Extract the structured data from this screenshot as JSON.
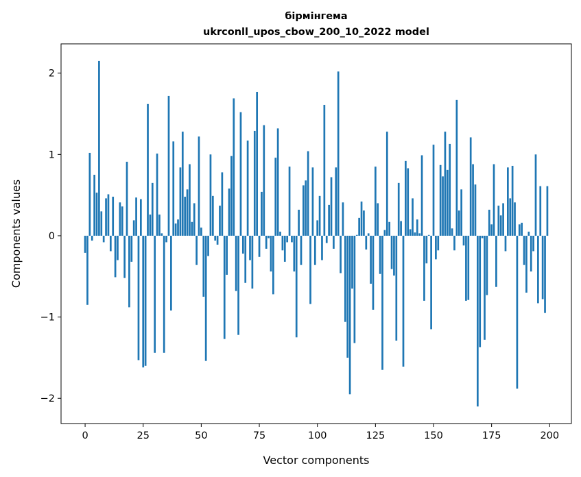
{
  "chart_data": {
    "type": "bar",
    "title": [
      "бірмінгема",
      "ukrconll_upos_cbow_200_10_2022 model"
    ],
    "xlabel": "Vector components",
    "ylabel": "Components values",
    "xlim": [
      -10.36,
      209.36
    ],
    "ylim": [
      -2.31,
      2.36
    ],
    "bar_width": 0.8,
    "color": "#1f77b4",
    "xticks": [
      0,
      25,
      50,
      75,
      100,
      125,
      150,
      175,
      200
    ],
    "xtick_labels": [
      "0",
      "25",
      "50",
      "75",
      "100",
      "125",
      "150",
      "175",
      "200"
    ],
    "yticks": [
      -2,
      -1,
      0,
      1,
      2
    ],
    "ytick_labels": [
      "−2",
      "−1",
      "0",
      "1",
      "2"
    ],
    "values": [
      -0.21,
      -0.85,
      1.02,
      -0.06,
      0.75,
      0.53,
      2.15,
      0.3,
      -0.08,
      0.46,
      0.51,
      -0.19,
      0.48,
      -0.51,
      -0.3,
      0.41,
      0.36,
      -0.52,
      0.91,
      -0.88,
      -0.32,
      0.19,
      0.47,
      -1.53,
      0.45,
      -1.62,
      -1.6,
      1.62,
      0.26,
      0.65,
      -1.44,
      1.01,
      0.26,
      0.03,
      -1.44,
      -0.08,
      1.72,
      -0.92,
      1.16,
      0.15,
      0.2,
      0.84,
      1.28,
      0.48,
      0.57,
      0.88,
      0.17,
      0.4,
      -0.36,
      1.22,
      0.1,
      -0.75,
      -1.54,
      -0.25,
      1.0,
      0.49,
      -0.06,
      -0.11,
      0.37,
      0.78,
      -1.27,
      -0.48,
      0.58,
      0.98,
      1.69,
      -0.68,
      -1.22,
      1.52,
      -0.22,
      -0.58,
      1.17,
      -0.3,
      -0.65,
      1.29,
      1.77,
      -0.26,
      0.54,
      1.36,
      -0.16,
      -0.03,
      -0.44,
      -0.72,
      0.96,
      1.32,
      0.05,
      -0.18,
      -0.32,
      -0.08,
      0.85,
      -0.08,
      -0.44,
      -1.25,
      0.32,
      -0.36,
      0.62,
      0.68,
      1.04,
      -0.84,
      0.84,
      -0.36,
      0.19,
      0.49,
      -0.3,
      1.61,
      -0.09,
      0.38,
      0.72,
      -0.16,
      0.84,
      2.02,
      -0.46,
      0.41,
      -1.06,
      -1.5,
      -1.95,
      -0.65,
      -1.32,
      0.01,
      0.22,
      0.42,
      0.31,
      -0.17,
      0.03,
      -0.59,
      -0.91,
      0.85,
      0.4,
      -0.47,
      -1.65,
      0.07,
      1.28,
      0.17,
      -0.41,
      -0.49,
      -1.29,
      0.65,
      0.18,
      -1.61,
      0.92,
      0.83,
      0.08,
      0.46,
      0.04,
      0.2,
      0.03,
      0.99,
      -0.8,
      -0.34,
      0.01,
      -1.15,
      1.12,
      -0.29,
      -0.18,
      0.87,
      0.73,
      1.28,
      0.81,
      1.13,
      0.09,
      -0.18,
      1.67,
      0.31,
      0.57,
      -0.12,
      -0.8,
      -0.79,
      1.21,
      0.88,
      0.63,
      -2.1,
      -1.37,
      -0.03,
      -1.28,
      -0.73,
      0.32,
      0.14,
      0.88,
      -0.63,
      0.37,
      0.25,
      0.4,
      -0.19,
      0.84,
      0.46,
      0.86,
      0.41,
      -1.88,
      0.14,
      0.16,
      -0.36,
      -0.7,
      0.05,
      -0.44,
      -0.19,
      1.0,
      -0.83,
      0.61,
      -0.78,
      -0.95,
      0.61
    ]
  }
}
